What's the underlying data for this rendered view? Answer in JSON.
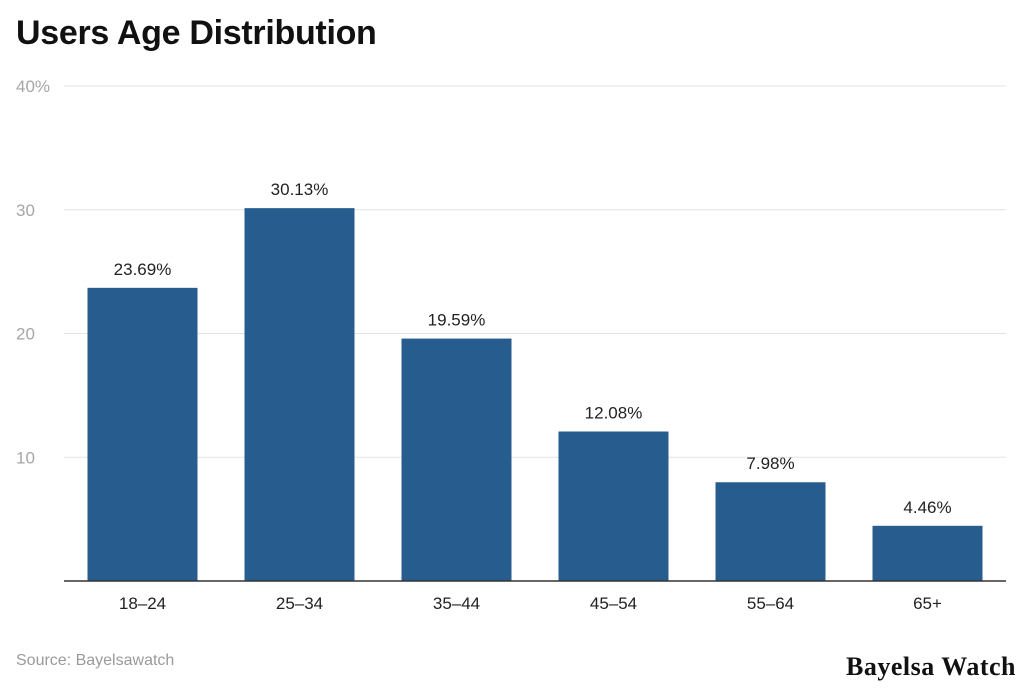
{
  "chart_data": {
    "type": "bar",
    "title": "Users Age Distribution",
    "categories": [
      "18–24",
      "25–34",
      "35–44",
      "45–54",
      "55–64",
      "65+"
    ],
    "values": [
      23.69,
      30.13,
      19.59,
      12.08,
      7.98,
      4.46
    ],
    "value_labels": [
      "23.69%",
      "30.13%",
      "19.59%",
      "12.08%",
      "7.98%",
      "4.46%"
    ],
    "ylim": [
      0,
      40
    ],
    "yticks": [
      10,
      20,
      30,
      40
    ],
    "ytick_labels": [
      "10",
      "20",
      "30",
      "40%"
    ],
    "xlabel": "",
    "ylabel": "",
    "grid": true,
    "bar_color": "#275d8e",
    "legend": "none"
  },
  "footer": {
    "source": "Source: Bayelsawatch",
    "brand": "Bayelsa Watch"
  }
}
